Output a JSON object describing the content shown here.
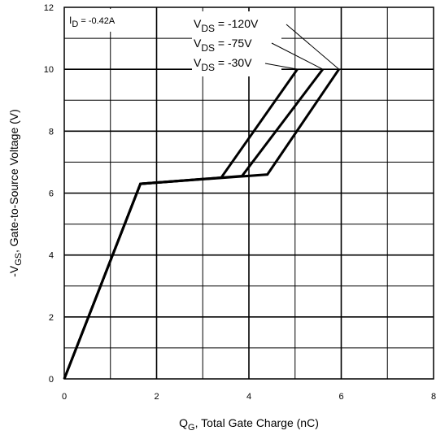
{
  "chart_data": {
    "type": "line",
    "title": "",
    "xlabel": {
      "main": "Q",
      "sub": "G",
      "rest": ", Total Gate Charge (nC)"
    },
    "ylabel": {
      "pre": "-V",
      "sub": "GS",
      "rest": ", Gate-to-Source Voltage (V)"
    },
    "xlim": [
      0,
      8
    ],
    "ylim": [
      0,
      12
    ],
    "x_ticks": [
      "0",
      "2",
      "4",
      "6",
      "8"
    ],
    "y_ticks": [
      "0",
      "2",
      "4",
      "6",
      "8",
      "10",
      "12"
    ],
    "grid": true,
    "series": [
      {
        "name": "-120V",
        "x": [
          0,
          1.65,
          4.4,
          5.95
        ],
        "y": [
          0,
          6.3,
          6.6,
          10
        ]
      },
      {
        "name": "-75V",
        "x": [
          0,
          1.65,
          3.85,
          5.6
        ],
        "y": [
          0,
          6.3,
          6.55,
          10
        ]
      },
      {
        "name": "-30V",
        "x": [
          0,
          1.65,
          3.4,
          5.05
        ],
        "y": [
          0,
          6.3,
          6.5,
          10
        ]
      }
    ],
    "annotations": {
      "id_label": {
        "main": "I",
        "sub": "D",
        "rest": " =  -0.42A"
      },
      "vds": [
        {
          "main": "V",
          "sub": "DS",
          "rest": "  = -120V"
        },
        {
          "main": "V",
          "sub": "DS",
          "rest": " = -75V"
        },
        {
          "main": "V",
          "sub": "DS",
          "rest": " = -30V"
        }
      ]
    },
    "colors": {
      "line": "#000000",
      "grid": "#000000",
      "background": "#ffffff"
    }
  }
}
